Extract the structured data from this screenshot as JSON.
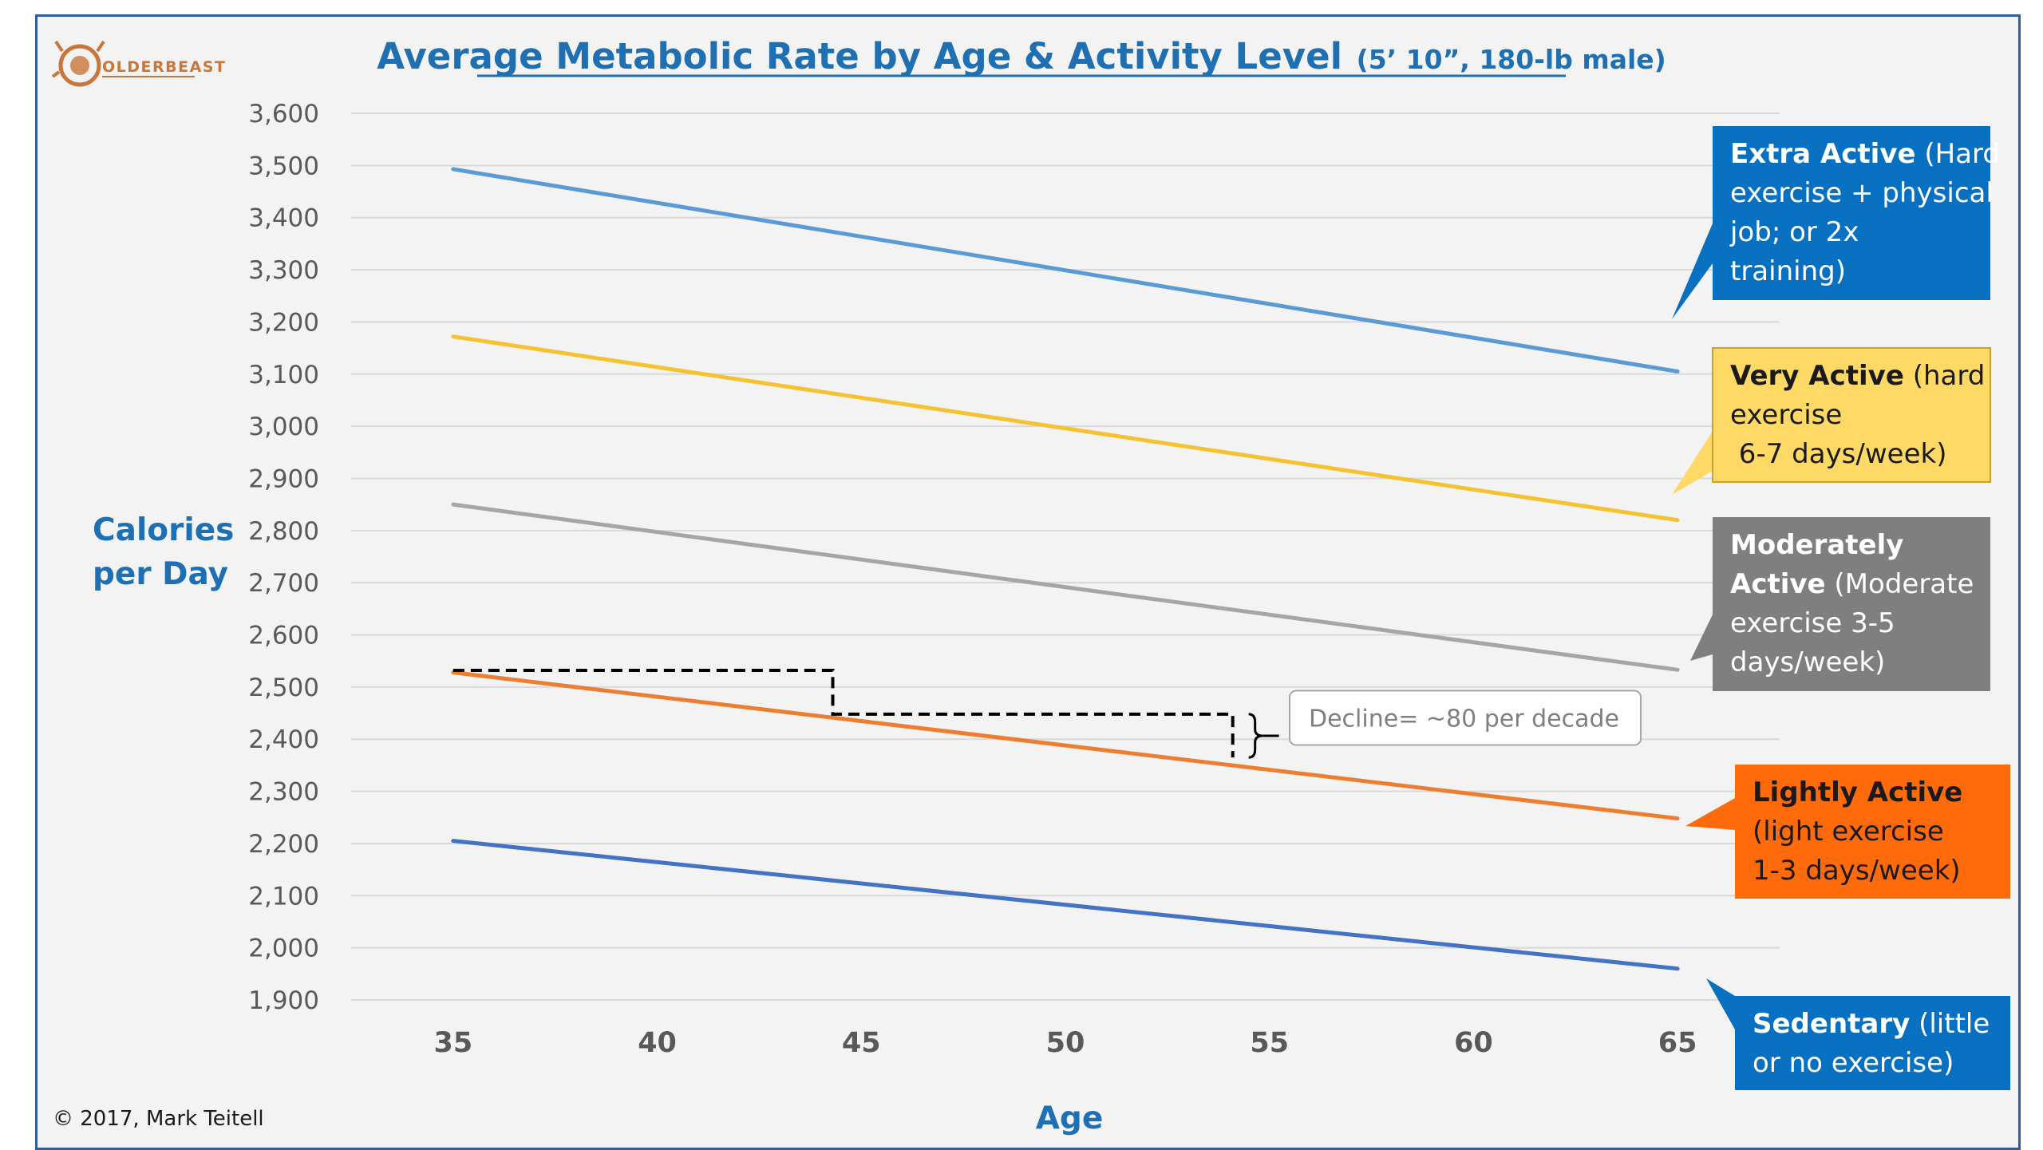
{
  "logo": {
    "text": "OLDERBEAST",
    "icon": "lion-head-icon",
    "color": "#c8763a"
  },
  "copyright": "© 2017, Mark Teitell",
  "chart_data": {
    "type": "line",
    "title": "Average Metabolic Rate by Age & Activity Level",
    "subtitle": "(5’ 10”, 180-lb male)",
    "xlabel": "Age",
    "ylabel": [
      "Calories",
      "per Day"
    ],
    "x": [
      35,
      65
    ],
    "xticks": [
      "35",
      "40",
      "45",
      "50",
      "55",
      "60",
      "65"
    ],
    "xlim": [
      32.5,
      67.5
    ],
    "ylim": [
      1900,
      3600
    ],
    "yticks": [
      "1,900",
      "2,000",
      "2,100",
      "2,200",
      "2,300",
      "2,400",
      "2,500",
      "2,600",
      "2,700",
      "2,800",
      "2,900",
      "3,000",
      "3,100",
      "3,200",
      "3,300",
      "3,400",
      "3,500",
      "3,600"
    ],
    "grid": true,
    "series": [
      {
        "key": "extra-active",
        "color": "#5b9bd5",
        "values": [
          3493,
          3105
        ],
        "label_bold": "Extra Active",
        "label_rest": [
          "(Hard",
          "exercise + physical",
          "job; or 2x",
          "training)"
        ],
        "box_color": "#0870c0",
        "text_color": "#ffffff"
      },
      {
        "key": "very-active",
        "color": "#f5c232",
        "values": [
          3172,
          2820
        ],
        "label_bold": "Very Active",
        "label_rest": [
          "(hard",
          "exercise",
          " 6-7 days/week)"
        ],
        "box_color": "#ffd966",
        "text_color": "#1a1a1a"
      },
      {
        "key": "moderately-active",
        "color": "#a6a6a6",
        "values": [
          2850,
          2533
        ],
        "label_bold": "Moderately",
        "label_bold2": "Active",
        "label_rest": [
          "(Moderate",
          "exercise 3-5",
          "days/week)"
        ],
        "box_color": "#7f7f7f",
        "text_color": "#ffffff"
      },
      {
        "key": "lightly-active",
        "color": "#ed7d31",
        "values": [
          2528,
          2248
        ],
        "label_bold": "Lightly Active",
        "label_rest": [
          "(light exercise",
          "1-3 days/week)"
        ],
        "box_color": "#ff6b0b",
        "text_color": "#1a1a1a"
      },
      {
        "key": "sedentary",
        "color": "#4472c4",
        "values": [
          2205,
          1960
        ],
        "label_bold": "Sedentary",
        "label_rest": [
          "(little",
          "or no exercise)"
        ],
        "box_color": "#0870c0",
        "text_color": "#ffffff"
      }
    ],
    "annotation": {
      "text": "Decline= ~80 per decade",
      "step_points": [
        [
          35,
          2532
        ],
        [
          44.3,
          2532
        ],
        [
          44.3,
          2448
        ],
        [
          54.1,
          2448
        ],
        [
          54.1,
          2365
        ]
      ]
    }
  }
}
